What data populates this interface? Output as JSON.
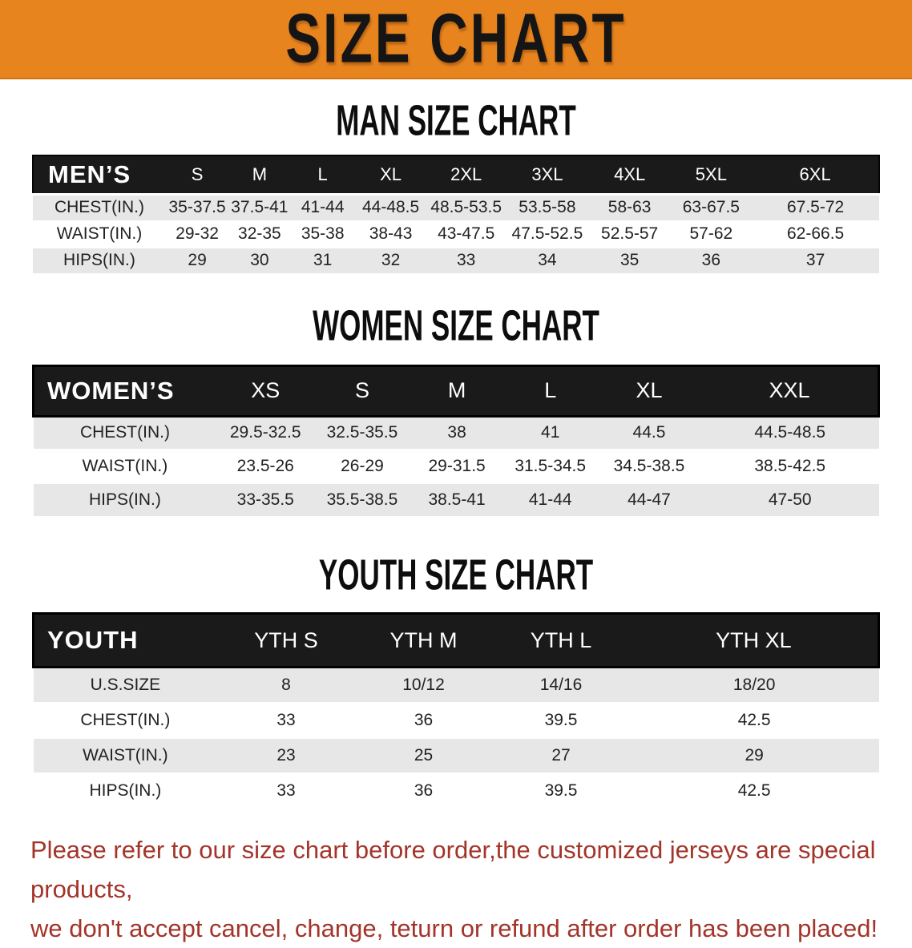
{
  "banner": {
    "title": "SIZE CHART"
  },
  "sections": [
    {
      "id": "men",
      "heading": "MAN SIZE CHART",
      "table": {
        "corner": "MEN’S",
        "sizes": [
          "S",
          "M",
          "L",
          "XL",
          "2XL",
          "3XL",
          "4XL",
          "5XL",
          "6XL"
        ],
        "rows": [
          {
            "label": "CHEST(IN.)",
            "values": [
              "35-37.5",
              "37.5-41",
              "41-44",
              "44-48.5",
              "48.5-53.5",
              "53.5-58",
              "58-63",
              "63-67.5",
              "67.5-72"
            ]
          },
          {
            "label": "WAIST(IN.)",
            "values": [
              "29-32",
              "32-35",
              "35-38",
              "38-43",
              "43-47.5",
              "47.5-52.5",
              "52.5-57",
              "57-62",
              "62-66.5"
            ]
          },
          {
            "label": "HIPS(IN.)",
            "values": [
              "29",
              "30",
              "31",
              "32",
              "33",
              "34",
              "35",
              "36",
              "37"
            ]
          }
        ]
      }
    },
    {
      "id": "women",
      "heading": "WOMEN SIZE CHART",
      "table": {
        "corner": "WOMEN’S",
        "sizes": [
          "XS",
          "S",
          "M",
          "L",
          "XL",
          "XXL"
        ],
        "rows": [
          {
            "label": "CHEST(IN.)",
            "values": [
              "29.5-32.5",
              "32.5-35.5",
              "38",
              "41",
              "44.5",
              "44.5-48.5"
            ]
          },
          {
            "label": "WAIST(IN.)",
            "values": [
              "23.5-26",
              "26-29",
              "29-31.5",
              "31.5-34.5",
              "34.5-38.5",
              "38.5-42.5"
            ]
          },
          {
            "label": "HIPS(IN.)",
            "values": [
              "33-35.5",
              "35.5-38.5",
              "38.5-41",
              "41-44",
              "44-47",
              "47-50"
            ]
          }
        ]
      }
    },
    {
      "id": "youth",
      "heading": "YOUTH SIZE CHART",
      "table": {
        "corner": "YOUTH",
        "sizes": [
          "YTH S",
          "YTH M",
          "YTH L",
          "YTH XL"
        ],
        "rows": [
          {
            "label": "U.S.SIZE",
            "values": [
              "8",
              "10/12",
              "14/16",
              "18/20"
            ]
          },
          {
            "label": "CHEST(IN.)",
            "values": [
              "33",
              "36",
              "39.5",
              "42.5"
            ]
          },
          {
            "label": "WAIST(IN.)",
            "values": [
              "23",
              "25",
              "27",
              "29"
            ]
          },
          {
            "label": "HIPS(IN.)",
            "values": [
              "33",
              "36",
              "39.5",
              "42.5"
            ]
          }
        ]
      }
    }
  ],
  "disclaimer": {
    "line1": "Please refer to our size chart before order,the customized jerseys are special products,",
    "line2": "we don't accept cancel, change, teturn or refund after order has been placed!"
  },
  "colors": {
    "banner_orange": "#e8841e",
    "header_black": "#1a1a1a",
    "row_gray": "#e7e7e7",
    "disclaimer_red": "#a3342a"
  }
}
